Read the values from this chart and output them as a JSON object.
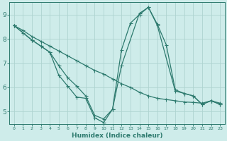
{
  "xlabel": "Humidex (Indice chaleur)",
  "bg_color": "#ceecea",
  "grid_color": "#aed4d0",
  "line_color": "#2d7a6e",
  "xlim": [
    -0.5,
    23.5
  ],
  "ylim": [
    4.5,
    9.5
  ],
  "xticks": [
    0,
    1,
    2,
    3,
    4,
    5,
    6,
    7,
    8,
    9,
    10,
    11,
    12,
    13,
    14,
    15,
    16,
    17,
    18,
    19,
    20,
    21,
    22,
    23
  ],
  "yticks": [
    5,
    6,
    7,
    8,
    9
  ],
  "line1_x": [
    0,
    1,
    2,
    3,
    4,
    5,
    6,
    7,
    8,
    9,
    10,
    11,
    12,
    13,
    14,
    15,
    16,
    17,
    18,
    19,
    20,
    21,
    22,
    23
  ],
  "line1_y": [
    8.55,
    8.35,
    8.1,
    7.9,
    7.7,
    7.5,
    7.3,
    7.1,
    6.9,
    6.7,
    6.55,
    6.35,
    6.15,
    6.0,
    5.8,
    5.65,
    5.55,
    5.5,
    5.45,
    5.4,
    5.38,
    5.35,
    5.45,
    5.35
  ],
  "line2_x": [
    0,
    1,
    2,
    3,
    4,
    5,
    6,
    7,
    8,
    9,
    10,
    11,
    12,
    13,
    14,
    15,
    16,
    17,
    18,
    19,
    20,
    21,
    22,
    23
  ],
  "line2_y": [
    8.55,
    8.25,
    7.95,
    7.7,
    7.45,
    6.9,
    6.4,
    6.05,
    5.65,
    4.85,
    4.7,
    5.1,
    7.55,
    8.65,
    9.0,
    9.3,
    8.6,
    7.75,
    5.9,
    5.75,
    5.65,
    5.3,
    5.45,
    5.3
  ],
  "line3_x": [
    0,
    2,
    3,
    4,
    5,
    6,
    7,
    8,
    9,
    10,
    11,
    12,
    14,
    15,
    16,
    18,
    19,
    20,
    21,
    22,
    23
  ],
  "line3_y": [
    8.55,
    7.95,
    7.7,
    7.45,
    6.5,
    6.05,
    5.6,
    5.55,
    4.75,
    4.55,
    5.1,
    6.9,
    9.05,
    9.3,
    8.55,
    5.85,
    5.75,
    5.65,
    5.3,
    5.45,
    5.3
  ]
}
